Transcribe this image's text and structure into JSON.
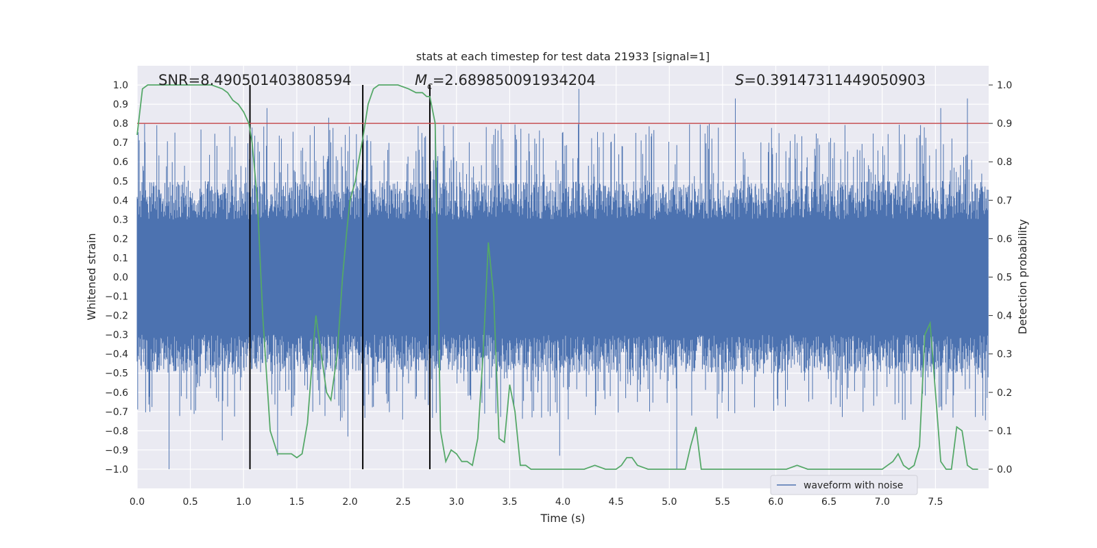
{
  "chart_data": {
    "type": "line",
    "title": "stats at each timestep for test data 21933 [signal=1]",
    "xlabel": "Time (s)",
    "ylabel_left": "Whitened strain",
    "ylabel_right": "Detection probability",
    "xlim": [
      0.0,
      8.0
    ],
    "ylim_left": [
      -1.1,
      1.1
    ],
    "ylim_right": [
      -0.05,
      1.05
    ],
    "x_ticks": [
      0.0,
      0.5,
      1.0,
      1.5,
      2.0,
      2.5,
      3.0,
      3.5,
      4.0,
      4.5,
      5.0,
      5.5,
      6.0,
      6.5,
      7.0,
      7.5
    ],
    "x_tick_labels": [
      "0.0",
      "0.5",
      "1.0",
      "1.5",
      "2.0",
      "2.5",
      "3.0",
      "3.5",
      "4.0",
      "4.5",
      "5.0",
      "5.5",
      "6.0",
      "6.5",
      "7.0",
      "7.5"
    ],
    "y_left_ticks": [
      1.0,
      0.9,
      0.8,
      0.7,
      0.6,
      0.5,
      0.4,
      0.3,
      0.2,
      0.1,
      0.0,
      -0.1,
      -0.2,
      -0.3,
      -0.4,
      -0.5,
      -0.6,
      -0.7,
      -0.8,
      -0.9,
      -1.0
    ],
    "y_left_tick_labels": [
      "1.0",
      "0.9",
      "0.8",
      "0.7",
      "0.6",
      "0.5",
      "0.4",
      "0.3",
      "0.2",
      "0.1",
      "0.0",
      "−0.1",
      "−0.2",
      "−0.3",
      "−0.4",
      "−0.5",
      "−0.6",
      "−0.7",
      "−0.8",
      "−0.9",
      "−1.0"
    ],
    "y_right_ticks": [
      1.0,
      0.9,
      0.8,
      0.7,
      0.6,
      0.5,
      0.4,
      0.3,
      0.2,
      0.1,
      0.0
    ],
    "y_right_tick_labels": [
      "1.0",
      "0.9",
      "0.8",
      "0.7",
      "0.6",
      "0.5",
      "0.4",
      "0.3",
      "0.2",
      "0.1",
      "0.0"
    ],
    "annotations": {
      "snr": "SNR=8.490501403808594",
      "mc_symbol": "M",
      "mc_sub": "c",
      "mc_value": "=2.689850091934204",
      "s_symbol": "S",
      "s_value": "=0.39147311449050903"
    },
    "threshold": {
      "value": 0.9,
      "axis": "right",
      "color": "#c44e52"
    },
    "vertical_lines": [
      1.06,
      2.12,
      2.75
    ],
    "legend": {
      "label": "waveform with noise",
      "placement": "lower-right"
    },
    "waveform": {
      "name": "waveform with noise",
      "color": "#4c72b0",
      "n_samples": 1600,
      "typical_envelope": [
        -0.4,
        0.4
      ],
      "peak_spikes": [
        {
          "x": 0.3,
          "y": -1.0
        },
        {
          "x": 0.8,
          "y": -0.85
        },
        {
          "x": 1.22,
          "y": 0.88
        },
        {
          "x": 1.32,
          "y": -0.93
        },
        {
          "x": 1.8,
          "y": 0.83
        },
        {
          "x": 1.98,
          "y": -0.83
        },
        {
          "x": 2.8,
          "y": 0.81
        },
        {
          "x": 3.97,
          "y": -0.93
        },
        {
          "x": 4.15,
          "y": 0.98
        },
        {
          "x": 5.07,
          "y": -1.0
        },
        {
          "x": 5.62,
          "y": 0.93
        },
        {
          "x": 7.55,
          "y": 0.88
        },
        {
          "x": 7.8,
          "y": 0.93
        }
      ]
    },
    "series": [
      {
        "name": "detection probability",
        "axis": "right",
        "color": "#55a868",
        "x": [
          0.0,
          0.05,
          0.1,
          0.2,
          0.3,
          0.4,
          0.5,
          0.6,
          0.7,
          0.8,
          0.85,
          0.9,
          0.95,
          1.0,
          1.05,
          1.08,
          1.13,
          1.18,
          1.25,
          1.32,
          1.38,
          1.45,
          1.5,
          1.55,
          1.6,
          1.65,
          1.68,
          1.72,
          1.78,
          1.82,
          1.88,
          1.93,
          1.97,
          2.0,
          2.05,
          2.08,
          2.12,
          2.17,
          2.22,
          2.27,
          2.35,
          2.45,
          2.55,
          2.62,
          2.68,
          2.72,
          2.75,
          2.8,
          2.85,
          2.9,
          2.95,
          3.0,
          3.05,
          3.1,
          3.15,
          3.2,
          3.25,
          3.3,
          3.35,
          3.4,
          3.45,
          3.5,
          3.55,
          3.6,
          3.65,
          3.7,
          3.8,
          3.9,
          4.0,
          4.1,
          4.2,
          4.3,
          4.4,
          4.5,
          4.55,
          4.6,
          4.65,
          4.7,
          4.8,
          4.9,
          5.0,
          5.1,
          5.15,
          5.2,
          5.25,
          5.3,
          5.35,
          5.4,
          5.5,
          5.6,
          5.7,
          5.8,
          5.9,
          6.0,
          6.1,
          6.2,
          6.3,
          6.4,
          6.5,
          6.6,
          6.7,
          6.8,
          6.9,
          7.0,
          7.05,
          7.1,
          7.15,
          7.2,
          7.25,
          7.3,
          7.35,
          7.4,
          7.45,
          7.5,
          7.55,
          7.6,
          7.65,
          7.7,
          7.75,
          7.8,
          7.85,
          7.9
        ],
        "values": [
          0.87,
          0.99,
          1.0,
          1.0,
          1.0,
          1.0,
          1.0,
          1.0,
          1.0,
          0.99,
          0.98,
          0.96,
          0.95,
          0.93,
          0.9,
          0.85,
          0.7,
          0.4,
          0.1,
          0.04,
          0.04,
          0.04,
          0.03,
          0.04,
          0.12,
          0.3,
          0.4,
          0.32,
          0.2,
          0.18,
          0.3,
          0.5,
          0.62,
          0.7,
          0.75,
          0.8,
          0.86,
          0.95,
          0.99,
          1.0,
          1.0,
          1.0,
          0.99,
          0.98,
          0.98,
          0.97,
          0.97,
          0.9,
          0.1,
          0.02,
          0.05,
          0.04,
          0.02,
          0.02,
          0.01,
          0.08,
          0.3,
          0.59,
          0.45,
          0.08,
          0.07,
          0.22,
          0.15,
          0.01,
          0.01,
          0.0,
          0.0,
          0.0,
          0.0,
          0.0,
          0.0,
          0.01,
          0.0,
          0.0,
          0.01,
          0.03,
          0.03,
          0.01,
          0.0,
          0.0,
          0.0,
          0.0,
          0.0,
          0.06,
          0.11,
          0.0,
          0.0,
          0.0,
          0.0,
          0.0,
          0.0,
          0.0,
          0.0,
          0.0,
          0.0,
          0.01,
          0.0,
          0.0,
          0.0,
          0.0,
          0.0,
          0.0,
          0.0,
          0.0,
          0.01,
          0.02,
          0.04,
          0.01,
          0.0,
          0.01,
          0.06,
          0.35,
          0.38,
          0.2,
          0.02,
          0.0,
          0.0,
          0.11,
          0.1,
          0.01,
          0.0,
          0.0
        ]
      }
    ]
  }
}
